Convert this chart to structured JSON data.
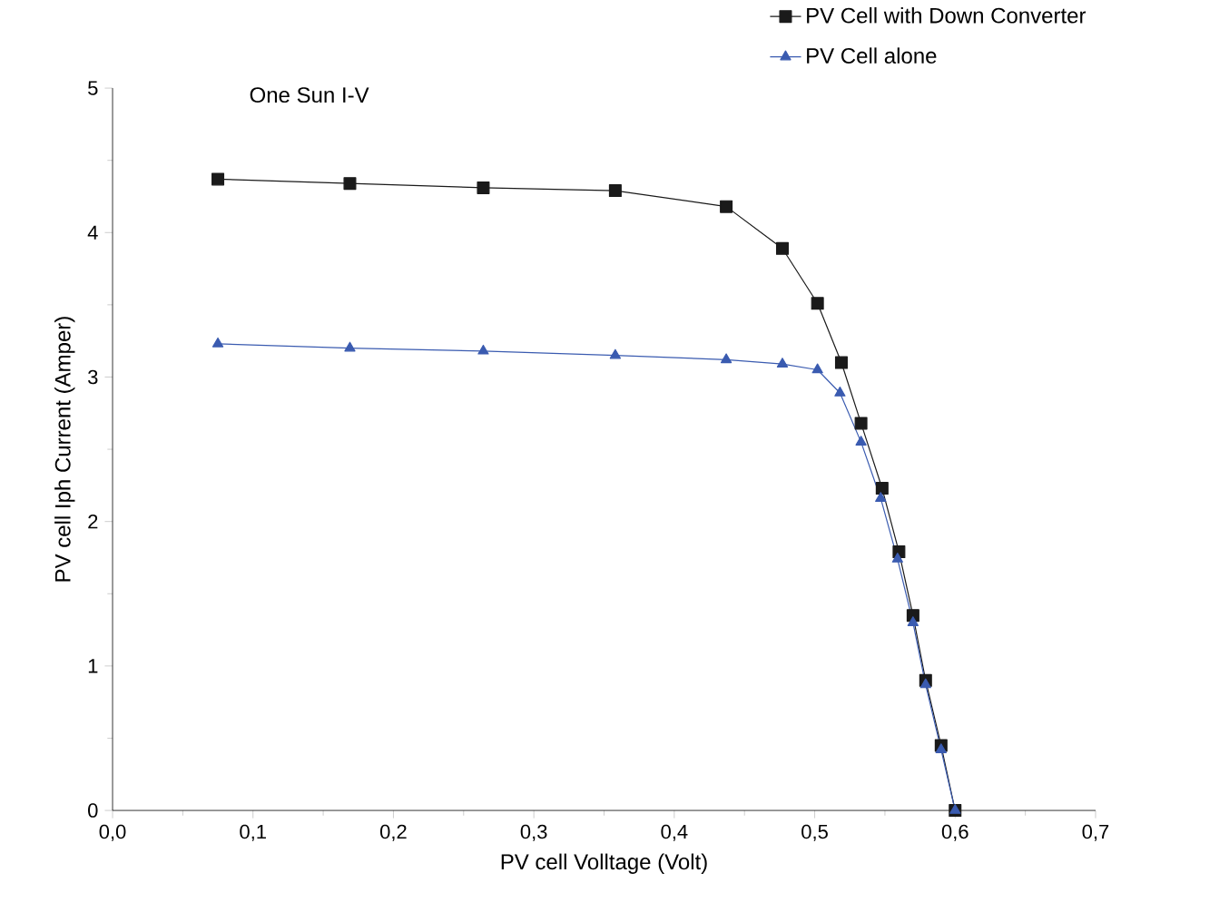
{
  "chart_data": {
    "type": "line",
    "title": "One Sun I-V",
    "xlabel": "PV cell Volltage (Volt)",
    "ylabel": "PV cell Iph Current (Amper)",
    "xlim": [
      0,
      0.7
    ],
    "ylim": [
      0,
      5
    ],
    "xticks": [
      {
        "value": 0,
        "label": "0,0"
      },
      {
        "value": 0.1,
        "label": "0,1"
      },
      {
        "value": 0.2,
        "label": "0,2"
      },
      {
        "value": 0.3,
        "label": "0,3"
      },
      {
        "value": 0.4,
        "label": "0,4"
      },
      {
        "value": 0.5,
        "label": "0,5"
      },
      {
        "value": 0.6,
        "label": "0,6"
      },
      {
        "value": 0.7,
        "label": "0,7"
      }
    ],
    "yticks": [
      0,
      1,
      2,
      3,
      4,
      5
    ],
    "legend": "top right",
    "grid": false,
    "series": [
      {
        "name": "PV Cell with Down Converter",
        "color": "#1a1a1a",
        "marker": "square",
        "x": [
          0.075,
          0.169,
          0.264,
          0.358,
          0.437,
          0.477,
          0.502,
          0.519,
          0.533,
          0.548,
          0.56,
          0.57,
          0.579,
          0.59,
          0.6
        ],
        "values": [
          4.37,
          4.34,
          4.31,
          4.29,
          4.18,
          3.89,
          3.51,
          3.1,
          2.68,
          2.23,
          1.79,
          1.35,
          0.9,
          0.45,
          0
        ]
      },
      {
        "name": "PV Cell alone",
        "color": "#3a5bb0",
        "marker": "triangle",
        "x": [
          0.075,
          0.169,
          0.264,
          0.358,
          0.437,
          0.477,
          0.502,
          0.518,
          0.533,
          0.547,
          0.559,
          0.57,
          0.579,
          0.59,
          0.6
        ],
        "values": [
          3.23,
          3.2,
          3.18,
          3.15,
          3.12,
          3.09,
          3.05,
          2.89,
          2.55,
          2.16,
          1.74,
          1.3,
          0.87,
          0.42,
          0
        ]
      }
    ]
  }
}
